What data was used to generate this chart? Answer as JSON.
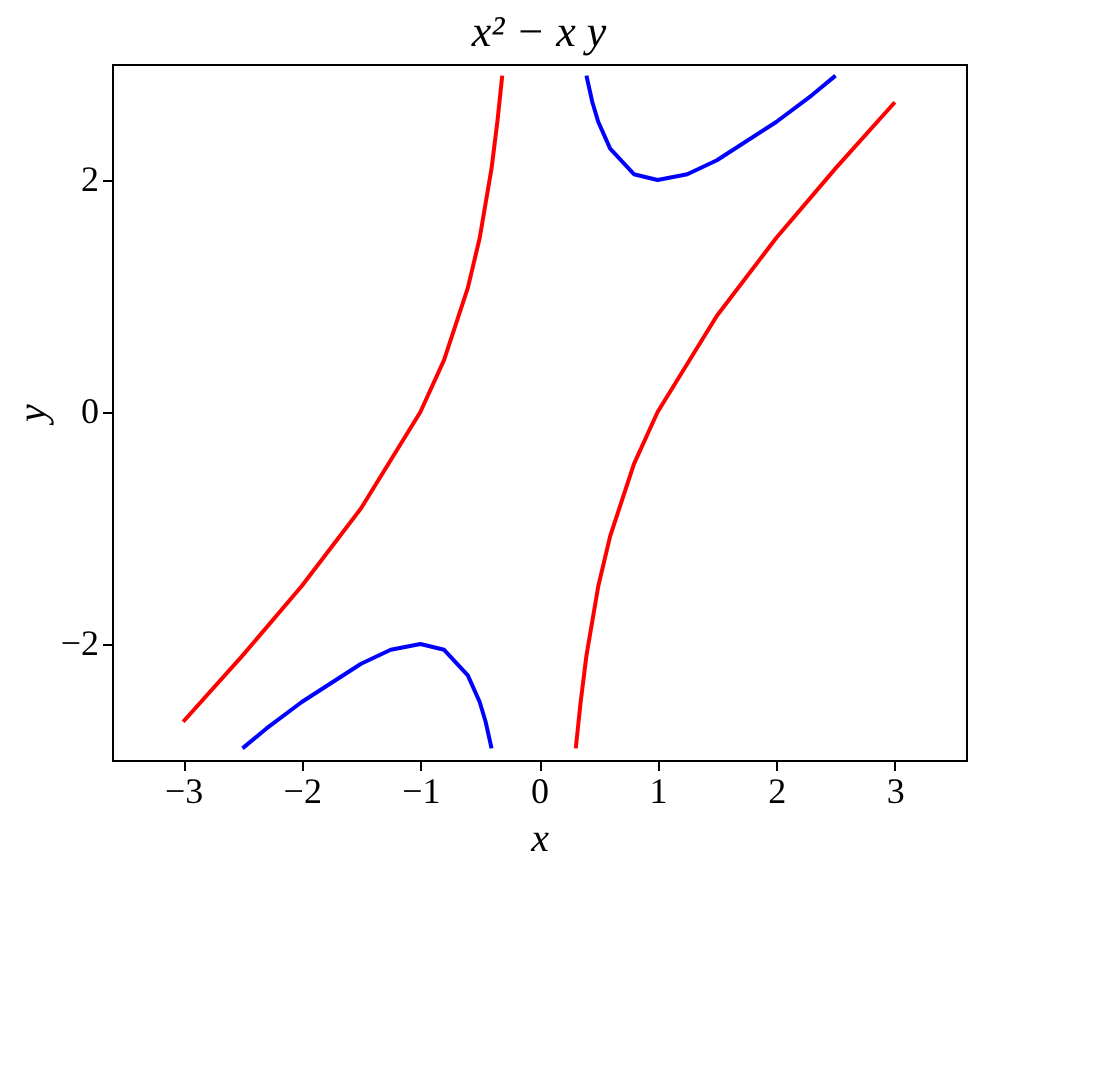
{
  "chart_data": {
    "type": "line",
    "title": "x² − x y",
    "xlabel": "x",
    "ylabel": "y",
    "xlim": [
      -3.6,
      3.6
    ],
    "ylim": [
      -3,
      3
    ],
    "xticks": [
      -3,
      -2,
      -1,
      0,
      1,
      2,
      3
    ],
    "yticks": [
      -2,
      0,
      2
    ],
    "grid": false,
    "legend": false,
    "marker": "none",
    "line_style": "solid",
    "series": [
      {
        "color": "#ff0000",
        "x": [
          -3,
          -2.5,
          -2,
          -1.5,
          -1,
          -0.8,
          -0.6,
          -0.5,
          -0.4,
          -0.35,
          -0.31
        ],
        "values": [
          -2.67,
          -2.1,
          -1.5,
          -0.83,
          0,
          0.45,
          1.07,
          1.5,
          2.1,
          2.51,
          2.9
        ]
      },
      {
        "color": "#ff0000",
        "x": [
          0.31,
          0.35,
          0.4,
          0.5,
          0.6,
          0.8,
          1,
          1.5,
          2,
          2.5,
          3
        ],
        "values": [
          -2.9,
          -2.51,
          -2.1,
          -1.5,
          -1.07,
          -0.45,
          0,
          0.83,
          1.5,
          2.1,
          2.67
        ]
      },
      {
        "color": "#0000ff",
        "x": [
          0.4,
          0.45,
          0.5,
          0.6,
          0.8,
          1,
          1.25,
          1.5,
          2,
          2.3,
          2.5
        ],
        "values": [
          2.9,
          2.67,
          2.5,
          2.27,
          2.05,
          2,
          2.05,
          2.17,
          2.5,
          2.73,
          2.9
        ]
      },
      {
        "color": "#0000ff",
        "x": [
          -2.5,
          -2.3,
          -2,
          -1.5,
          -1.25,
          -1,
          -0.8,
          -0.6,
          -0.5,
          -0.45,
          -0.4
        ],
        "values": [
          -2.9,
          -2.73,
          -2.5,
          -2.17,
          -2.05,
          -2,
          -2.05,
          -2.27,
          -2.5,
          -2.67,
          -2.9
        ]
      }
    ]
  }
}
